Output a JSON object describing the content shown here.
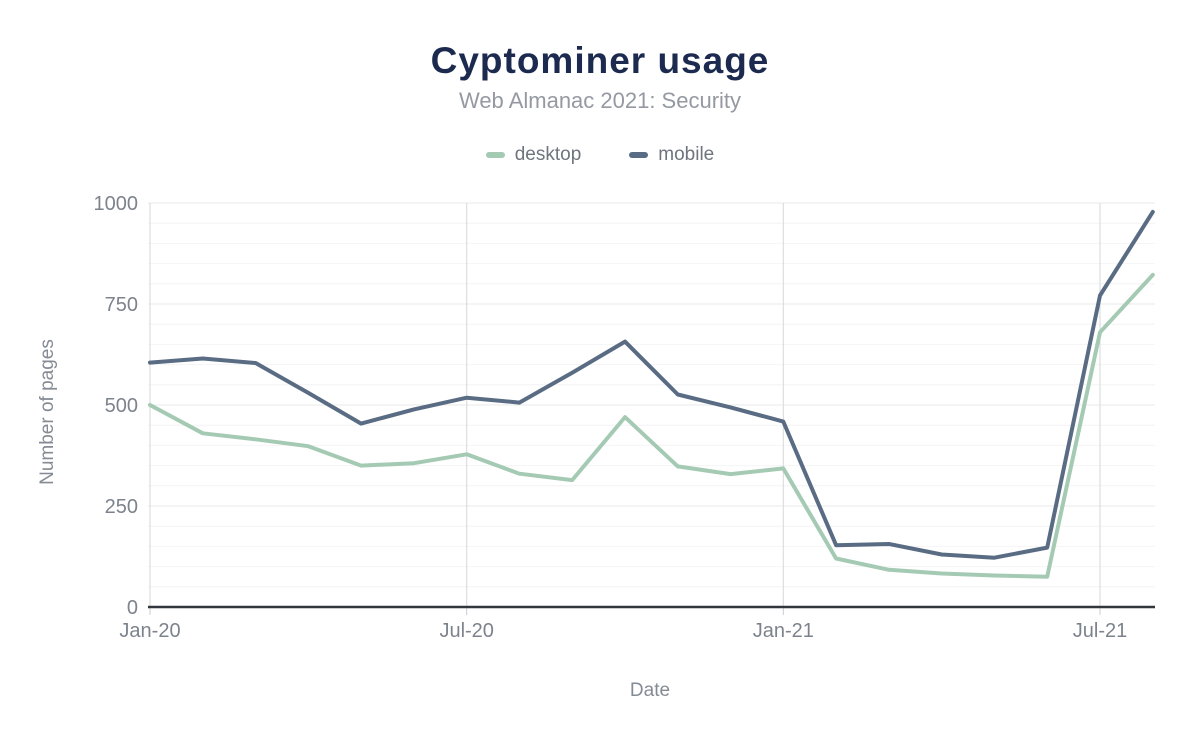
{
  "colors": {
    "background": "#ffffff",
    "title": "#1b2a4e",
    "subtitle": "#9499a2",
    "legend_text": "#6e757e",
    "tick_text": "#7d838c",
    "axis_title": "#858b94",
    "axis_line": "#32373d",
    "grid_minor": "#f4f4f5",
    "grid_major": "#e9e9eb",
    "grid_vertical": "#d6d8da",
    "tick_mark": "#c9ccd1",
    "desktop_series": "#a5cab4",
    "mobile_series": "#596c84"
  },
  "chart_data": {
    "type": "line",
    "title": "Cyptominer usage",
    "subtitle": "Web Almanac 2021: Security",
    "xlabel": "Date",
    "ylabel": "Number of pages",
    "x": [
      "Jan-20",
      "Feb-20",
      "Mar-20",
      "Apr-20",
      "May-20",
      "Jun-20",
      "Jul-20",
      "Aug-20",
      "Sep-20",
      "Oct-20",
      "Nov-20",
      "Dec-20",
      "Jan-21",
      "Feb-21",
      "Mar-21",
      "Apr-21",
      "May-21",
      "Jun-21",
      "Jul-21",
      "Aug-21"
    ],
    "series": [
      {
        "name": "desktop",
        "color": "#a5cab4",
        "values": [
          500,
          430,
          415,
          398,
          350,
          356,
          378,
          330,
          314,
          470,
          348,
          329,
          343,
          120,
          92,
          83,
          78,
          75,
          680,
          822
        ]
      },
      {
        "name": "mobile",
        "color": "#596c84",
        "values": [
          605,
          615,
          604,
          530,
          454,
          489,
          518,
          506,
          580,
          657,
          526,
          494,
          459,
          153,
          156,
          130,
          122,
          147,
          771,
          978
        ]
      }
    ],
    "ylim": [
      0,
      1000
    ],
    "y_ticks": [
      0,
      250,
      500,
      750,
      1000
    ],
    "minor_grid_step": 50,
    "major_grid_step": 250,
    "x_tick_indices": [
      0,
      6,
      12,
      18
    ],
    "x_tick_labels": [
      "Jan-20",
      "Jul-20",
      "Jan-21",
      "Jul-21"
    ],
    "grid": "on",
    "legend_position": "top"
  }
}
